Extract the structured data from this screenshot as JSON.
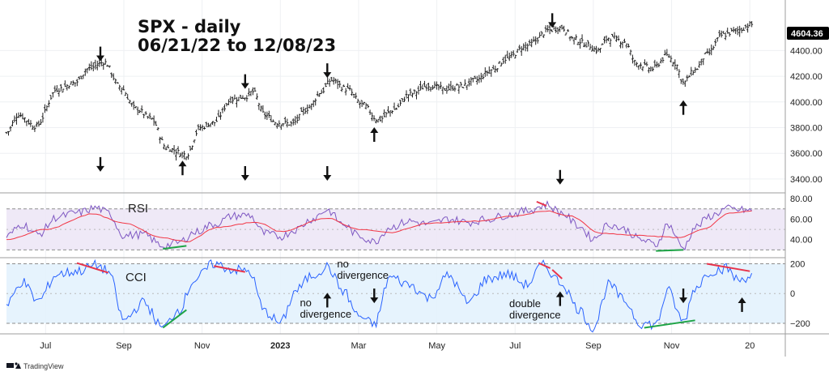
{
  "chart_data": [
    {
      "type": "ohlc",
      "panel": "price",
      "title_line1": "SPX - daily",
      "title_line2": "06/21/22 to 12/08/23",
      "last_price_label": "4604.36",
      "y_ticks": [
        "4400.00",
        "4200.00",
        "4000.00",
        "3800.00",
        "3600.00",
        "3400.00"
      ],
      "y_tick_values": [
        4400,
        4200,
        4000,
        3800,
        3600,
        3400
      ],
      "ylim": [
        3330,
        4680
      ],
      "x_tick_labels": [
        "Jul",
        "Sep",
        "Nov",
        "2023",
        "Mar",
        "May",
        "Jul",
        "Sep",
        "Nov",
        "20"
      ],
      "x_tick_months": [
        1,
        3,
        5,
        7,
        9,
        11,
        13,
        15,
        17,
        19
      ],
      "anchors": [
        {
          "m": 0,
          "v": 3760
        },
        {
          "m": 0.3,
          "v": 3900
        },
        {
          "m": 0.75,
          "v": 3810
        },
        {
          "m": 1.3,
          "v": 4100
        },
        {
          "m": 1.75,
          "v": 4150
        },
        {
          "m": 2.1,
          "v": 4260
        },
        {
          "m": 2.5,
          "v": 4310
        },
        {
          "m": 2.9,
          "v": 4120
        },
        {
          "m": 3.3,
          "v": 3950
        },
        {
          "m": 3.7,
          "v": 3870
        },
        {
          "m": 4.1,
          "v": 3640
        },
        {
          "m": 4.6,
          "v": 3590
        },
        {
          "m": 4.95,
          "v": 3800
        },
        {
          "m": 5.3,
          "v": 3840
        },
        {
          "m": 5.75,
          "v": 4020
        },
        {
          "m": 6.1,
          "v": 4040
        },
        {
          "m": 6.3,
          "v": 4080
        },
        {
          "m": 6.6,
          "v": 3900
        },
        {
          "m": 6.9,
          "v": 3840
        },
        {
          "m": 7.3,
          "v": 3830
        },
        {
          "m": 7.7,
          "v": 3950
        },
        {
          "m": 8.05,
          "v": 4080
        },
        {
          "m": 8.3,
          "v": 4170
        },
        {
          "m": 8.7,
          "v": 4100
        },
        {
          "m": 9.1,
          "v": 3980
        },
        {
          "m": 9.5,
          "v": 3860
        },
        {
          "m": 9.9,
          "v": 3940
        },
        {
          "m": 10.3,
          "v": 4060
        },
        {
          "m": 10.8,
          "v": 4130
        },
        {
          "m": 11.2,
          "v": 4100
        },
        {
          "m": 11.6,
          "v": 4120
        },
        {
          "m": 12.0,
          "v": 4170
        },
        {
          "m": 12.4,
          "v": 4250
        },
        {
          "m": 12.8,
          "v": 4340
        },
        {
          "m": 13.3,
          "v": 4440
        },
        {
          "m": 13.9,
          "v": 4560
        },
        {
          "m": 14.2,
          "v": 4580
        },
        {
          "m": 14.5,
          "v": 4490
        },
        {
          "m": 14.9,
          "v": 4440
        },
        {
          "m": 15.1,
          "v": 4400
        },
        {
          "m": 15.4,
          "v": 4500
        },
        {
          "m": 15.8,
          "v": 4470
        },
        {
          "m": 16.1,
          "v": 4300
        },
        {
          "m": 16.5,
          "v": 4260
        },
        {
          "m": 16.9,
          "v": 4360
        },
        {
          "m": 17.1,
          "v": 4300
        },
        {
          "m": 17.3,
          "v": 4150
        },
        {
          "m": 17.6,
          "v": 4250
        },
        {
          "m": 17.9,
          "v": 4370
        },
        {
          "m": 18.3,
          "v": 4520
        },
        {
          "m": 18.7,
          "v": 4560
        },
        {
          "m": 19.05,
          "v": 4604
        }
      ],
      "arrows_down": [
        {
          "m": 2.4,
          "v": 4380
        },
        {
          "m": 6.1,
          "v": 4165
        },
        {
          "m": 8.2,
          "v": 4250
        },
        {
          "m": 13.95,
          "v": 4640
        },
        {
          "m": 2.4,
          "v": 3520
        },
        {
          "m": 6.1,
          "v": 3450
        },
        {
          "m": 8.2,
          "v": 3450
        },
        {
          "m": 14.15,
          "v": 3420
        }
      ],
      "arrows_up": [
        {
          "m": 4.5,
          "v": 3480
        },
        {
          "m": 9.4,
          "v": 3740
        },
        {
          "m": 17.3,
          "v": 3950
        }
      ]
    },
    {
      "type": "line",
      "panel": "rsi",
      "label": "RSI",
      "y_ticks": [
        "80.00",
        "60.00",
        "40.00"
      ],
      "y_tick_values": [
        80,
        60,
        40
      ],
      "band": [
        30,
        70
      ],
      "ylim": [
        24,
        84
      ],
      "anchors": [
        {
          "m": 0,
          "v": 43
        },
        {
          "m": 0.4,
          "v": 55
        },
        {
          "m": 0.8,
          "v": 45
        },
        {
          "m": 1.3,
          "v": 62
        },
        {
          "m": 1.8,
          "v": 66
        },
        {
          "m": 2.3,
          "v": 71
        },
        {
          "m": 2.6,
          "v": 66
        },
        {
          "m": 3.0,
          "v": 44
        },
        {
          "m": 3.5,
          "v": 45
        },
        {
          "m": 4.0,
          "v": 34
        },
        {
          "m": 4.4,
          "v": 37
        },
        {
          "m": 4.8,
          "v": 47
        },
        {
          "m": 5.3,
          "v": 55
        },
        {
          "m": 5.8,
          "v": 63
        },
        {
          "m": 6.2,
          "v": 64
        },
        {
          "m": 6.6,
          "v": 46
        },
        {
          "m": 7.0,
          "v": 43
        },
        {
          "m": 7.4,
          "v": 50
        },
        {
          "m": 7.8,
          "v": 60
        },
        {
          "m": 8.2,
          "v": 69
        },
        {
          "m": 8.6,
          "v": 55
        },
        {
          "m": 9.0,
          "v": 44
        },
        {
          "m": 9.4,
          "v": 38
        },
        {
          "m": 9.8,
          "v": 52
        },
        {
          "m": 10.3,
          "v": 58
        },
        {
          "m": 10.8,
          "v": 55
        },
        {
          "m": 11.3,
          "v": 60
        },
        {
          "m": 11.8,
          "v": 57
        },
        {
          "m": 12.3,
          "v": 60
        },
        {
          "m": 12.8,
          "v": 64
        },
        {
          "m": 13.3,
          "v": 68
        },
        {
          "m": 13.8,
          "v": 74
        },
        {
          "m": 14.2,
          "v": 66
        },
        {
          "m": 14.6,
          "v": 54
        },
        {
          "m": 15.0,
          "v": 41
        },
        {
          "m": 15.4,
          "v": 55
        },
        {
          "m": 15.8,
          "v": 50
        },
        {
          "m": 16.2,
          "v": 40
        },
        {
          "m": 16.6,
          "v": 35
        },
        {
          "m": 16.9,
          "v": 55
        },
        {
          "m": 17.3,
          "v": 32
        },
        {
          "m": 17.6,
          "v": 52
        },
        {
          "m": 18.0,
          "v": 63
        },
        {
          "m": 18.4,
          "v": 70
        },
        {
          "m": 18.7,
          "v": 69
        },
        {
          "m": 19.05,
          "v": 68
        }
      ],
      "ma_anchors": [
        {
          "m": 0,
          "v": 40
        },
        {
          "m": 1.0,
          "v": 50
        },
        {
          "m": 2.2,
          "v": 65
        },
        {
          "m": 3.0,
          "v": 56
        },
        {
          "m": 4.0,
          "v": 42
        },
        {
          "m": 4.6,
          "v": 38
        },
        {
          "m": 5.4,
          "v": 52
        },
        {
          "m": 6.4,
          "v": 57
        },
        {
          "m": 7.0,
          "v": 48
        },
        {
          "m": 8.2,
          "v": 61
        },
        {
          "m": 9.0,
          "v": 50
        },
        {
          "m": 9.8,
          "v": 47
        },
        {
          "m": 10.8,
          "v": 56
        },
        {
          "m": 12.0,
          "v": 58
        },
        {
          "m": 13.0,
          "v": 63
        },
        {
          "m": 13.8,
          "v": 68
        },
        {
          "m": 14.4,
          "v": 63
        },
        {
          "m": 15.2,
          "v": 46
        },
        {
          "m": 16.2,
          "v": 44
        },
        {
          "m": 17.2,
          "v": 42
        },
        {
          "m": 17.8,
          "v": 50
        },
        {
          "m": 18.5,
          "v": 66
        },
        {
          "m": 19.05,
          "v": 68
        }
      ],
      "divergence_lines": [
        {
          "color": "#1ea446",
          "from": {
            "m": 4.0,
            "v": 31
          },
          "to": {
            "m": 4.6,
            "v": 34
          }
        },
        {
          "color": "#e8344b",
          "from": {
            "m": 13.55,
            "v": 77
          },
          "to": {
            "m": 13.8,
            "v": 73
          }
        },
        {
          "color": "#1ea446",
          "from": {
            "m": 16.6,
            "v": 29
          },
          "to": {
            "m": 17.3,
            "v": 30
          }
        }
      ]
    },
    {
      "type": "line",
      "panel": "cci",
      "label": "CCI",
      "y_ticks": [
        "200",
        "0",
        "−200"
      ],
      "y_tick_values": [
        200,
        0,
        -200
      ],
      "band": [
        -200,
        200
      ],
      "ylim": [
        -260,
        230
      ],
      "anchors": [
        {
          "m": 0,
          "v": -80
        },
        {
          "m": 0.4,
          "v": 80
        },
        {
          "m": 0.8,
          "v": -50
        },
        {
          "m": 1.3,
          "v": 130
        },
        {
          "m": 1.8,
          "v": 150
        },
        {
          "m": 2.3,
          "v": 190
        },
        {
          "m": 2.6,
          "v": 150
        },
        {
          "m": 3.0,
          "v": -180
        },
        {
          "m": 3.5,
          "v": -60
        },
        {
          "m": 4.0,
          "v": -230
        },
        {
          "m": 4.4,
          "v": -110
        },
        {
          "m": 4.8,
          "v": 90
        },
        {
          "m": 5.3,
          "v": 200
        },
        {
          "m": 5.8,
          "v": 160
        },
        {
          "m": 6.2,
          "v": 150
        },
        {
          "m": 6.6,
          "v": -120
        },
        {
          "m": 7.0,
          "v": -200
        },
        {
          "m": 7.4,
          "v": 20
        },
        {
          "m": 7.8,
          "v": 120
        },
        {
          "m": 8.2,
          "v": 180
        },
        {
          "m": 8.6,
          "v": 20
        },
        {
          "m": 9.0,
          "v": -150
        },
        {
          "m": 9.4,
          "v": -210
        },
        {
          "m": 9.8,
          "v": 110
        },
        {
          "m": 10.3,
          "v": 60
        },
        {
          "m": 10.8,
          "v": -30
        },
        {
          "m": 11.3,
          "v": 120
        },
        {
          "m": 11.8,
          "v": -60
        },
        {
          "m": 12.3,
          "v": 100
        },
        {
          "m": 12.8,
          "v": 130
        },
        {
          "m": 13.3,
          "v": 60
        },
        {
          "m": 13.7,
          "v": 190
        },
        {
          "m": 14.2,
          "v": 70
        },
        {
          "m": 14.6,
          "v": -100
        },
        {
          "m": 15.0,
          "v": -230
        },
        {
          "m": 15.4,
          "v": 60
        },
        {
          "m": 15.8,
          "v": -50
        },
        {
          "m": 16.2,
          "v": -200
        },
        {
          "m": 16.6,
          "v": -210
        },
        {
          "m": 16.9,
          "v": 20
        },
        {
          "m": 17.3,
          "v": -190
        },
        {
          "m": 17.6,
          "v": 40
        },
        {
          "m": 18.0,
          "v": 150
        },
        {
          "m": 18.4,
          "v": 170
        },
        {
          "m": 18.7,
          "v": 90
        },
        {
          "m": 19.05,
          "v": 120
        }
      ],
      "divergence_lines": [
        {
          "color": "#e8344b",
          "from": {
            "m": 1.8,
            "v": 205
          },
          "to": {
            "m": 2.6,
            "v": 140
          }
        },
        {
          "color": "#1ea446",
          "from": {
            "m": 4.0,
            "v": -230
          },
          "to": {
            "m": 4.6,
            "v": -110
          }
        },
        {
          "color": "#e8344b",
          "from": {
            "m": 5.3,
            "v": 185
          },
          "to": {
            "m": 6.1,
            "v": 145
          }
        },
        {
          "color": "#e8344b",
          "from": {
            "m": 13.6,
            "v": 205
          },
          "to": {
            "m": 13.9,
            "v": 170
          }
        },
        {
          "color": "#e8344b",
          "from": {
            "m": 13.95,
            "v": 160
          },
          "to": {
            "m": 14.2,
            "v": 100
          }
        },
        {
          "color": "#1ea446",
          "from": {
            "m": 16.3,
            "v": -230
          },
          "to": {
            "m": 17.6,
            "v": -180
          }
        },
        {
          "color": "#e8344b",
          "from": {
            "m": 17.9,
            "v": 200
          },
          "to": {
            "m": 19.0,
            "v": 150
          }
        }
      ],
      "arrows_up": [
        {
          "m": 8.2,
          "v": -50
        },
        {
          "m": 14.15,
          "v": -40
        },
        {
          "m": 18.8,
          "v": -80
        }
      ],
      "arrows_down": [
        {
          "m": 9.4,
          "v": -10
        },
        {
          "m": 17.3,
          "v": -10
        }
      ],
      "annotations": [
        {
          "lines": [
            "no",
            "divergence"
          ],
          "m": 8.45,
          "v": 175
        },
        {
          "lines": [
            "no",
            "divergence"
          ],
          "m": 7.5,
          "v": -85
        },
        {
          "lines": [
            "double",
            "divergence"
          ],
          "m": 12.85,
          "v": -90
        }
      ]
    }
  ],
  "branding": {
    "text": "TradingView",
    "logo": "tradingview-logo"
  },
  "colors": {
    "price_bar": "#222222",
    "rsi_line": "#7e57c2",
    "rsi_ma": "#f23645",
    "rsi_band_fill": "#ede7f6",
    "cci_line": "#2962ff",
    "cci_band_fill": "#e3f2fd",
    "price_badge": "#000000"
  }
}
